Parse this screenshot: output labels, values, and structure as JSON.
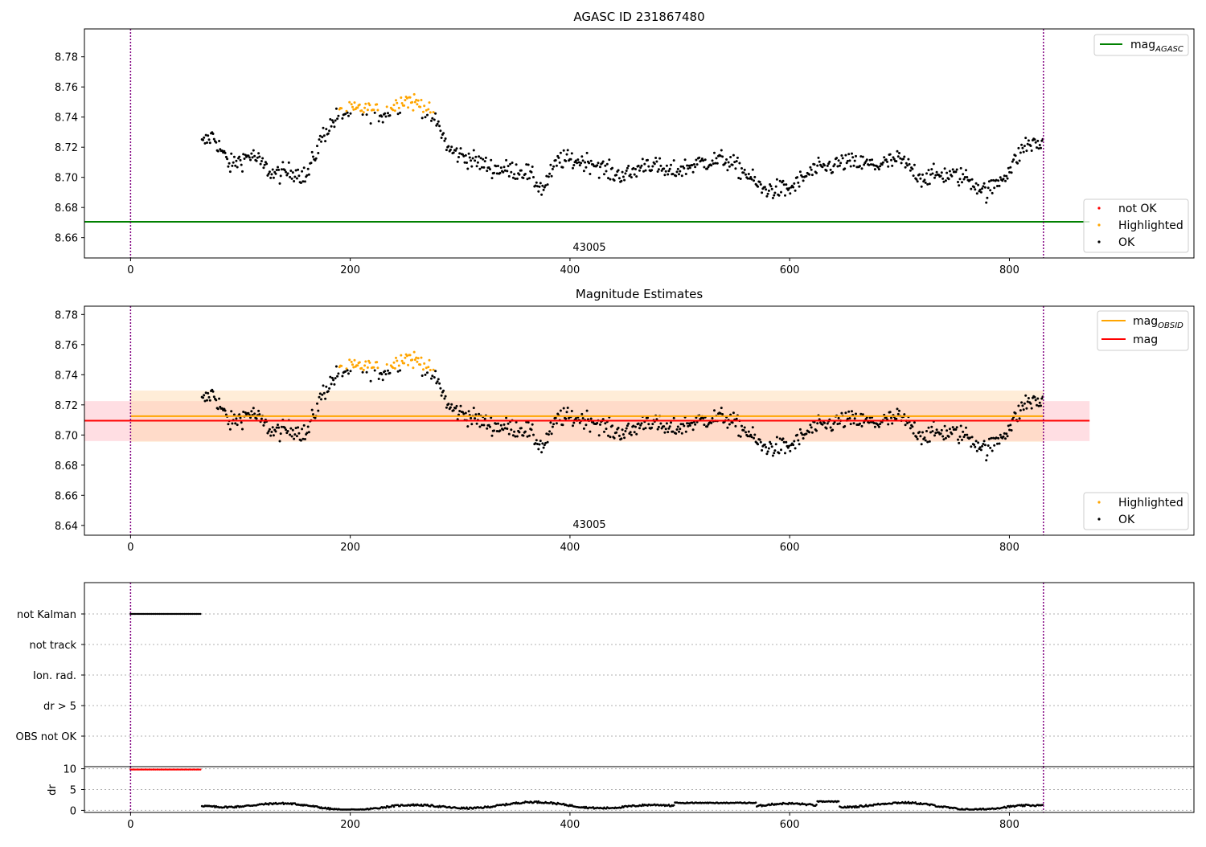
{
  "chart_data": [
    {
      "type": "scatter",
      "title": "AGASC ID 231867480",
      "xlim": [
        -42,
        968
      ],
      "ylim": [
        8.6465,
        8.7985
      ],
      "x_ticks": [
        0,
        200,
        400,
        600,
        800
      ],
      "y_ticks": [
        8.66,
        8.68,
        8.7,
        8.72,
        8.74,
        8.76,
        8.78
      ],
      "vlines": [
        0,
        831
      ],
      "hlines": [
        {
          "name": "mag",
          "sub": "AGASC",
          "value": 8.6705,
          "color": "#008000"
        }
      ],
      "annotation": {
        "text": "43005",
        "x": 415
      },
      "legend_lines": [
        {
          "name": "mag",
          "sub": "AGASC",
          "color": "#008000"
        }
      ],
      "legend_points": [
        {
          "name": "not OK",
          "color": "#ff0000"
        },
        {
          "name": "Highlighted",
          "color": "#ffa500"
        },
        {
          "name": "OK",
          "color": "#000000"
        }
      ],
      "x_range": [
        65,
        831
      ]
    },
    {
      "type": "scatter",
      "title": "Magnitude Estimates",
      "xlim": [
        -42,
        968
      ],
      "ylim": [
        8.6335,
        8.7855
      ],
      "x_ticks": [
        0,
        200,
        400,
        600,
        800
      ],
      "y_ticks": [
        8.64,
        8.66,
        8.68,
        8.7,
        8.72,
        8.74,
        8.76,
        8.78
      ],
      "vlines": [
        0,
        831
      ],
      "hlines": [
        {
          "name": "mag",
          "sub": "OBSID",
          "value": 8.7125,
          "color": "#ffa500"
        },
        {
          "name": "mag",
          "sub": "",
          "value": 8.7095,
          "color": "#ff0000"
        }
      ],
      "bands": [
        {
          "x": [
            -42,
            873
          ],
          "y": [
            8.696,
            8.7225
          ],
          "color": "#ffb6c1"
        },
        {
          "x": [
            0,
            831
          ],
          "y": [
            8.6955,
            8.7295
          ],
          "color": "#ffd8a8"
        }
      ],
      "annotation": {
        "text": "43005",
        "x": 415
      },
      "legend_lines": [
        {
          "name": "mag",
          "sub": "OBSID",
          "color": "#ffa500"
        },
        {
          "name": "mag",
          "sub": "",
          "color": "#ff0000"
        }
      ],
      "legend_points": [
        {
          "name": "Highlighted",
          "color": "#ffa500"
        },
        {
          "name": "OK",
          "color": "#000000"
        }
      ]
    },
    {
      "type": "scatter",
      "title": "",
      "flags": [
        "not Kalman",
        "not track",
        "Ion. rad.",
        "dr > 5",
        "OBS not OK"
      ],
      "not_kalman_x": [
        0,
        64
      ],
      "xlim": [
        -42,
        968
      ],
      "x_ticks": [
        0,
        200,
        400,
        600,
        800
      ],
      "vlines": [
        0,
        831
      ]
    },
    {
      "type": "scatter",
      "title": "",
      "ylabel": "dr",
      "xlim": [
        -42,
        968
      ],
      "ylim": [
        -0.5,
        10.5
      ],
      "x_ticks": [
        0,
        200,
        400,
        600,
        800
      ],
      "y_ticks": [
        0,
        5,
        10
      ],
      "vlines": [
        0,
        831
      ],
      "red_points": {
        "x": [
          0,
          64
        ],
        "y": 9.8
      },
      "black_points": {
        "x": [
          65,
          831
        ],
        "y_range": [
          0.2,
          2.3
        ]
      }
    }
  ]
}
